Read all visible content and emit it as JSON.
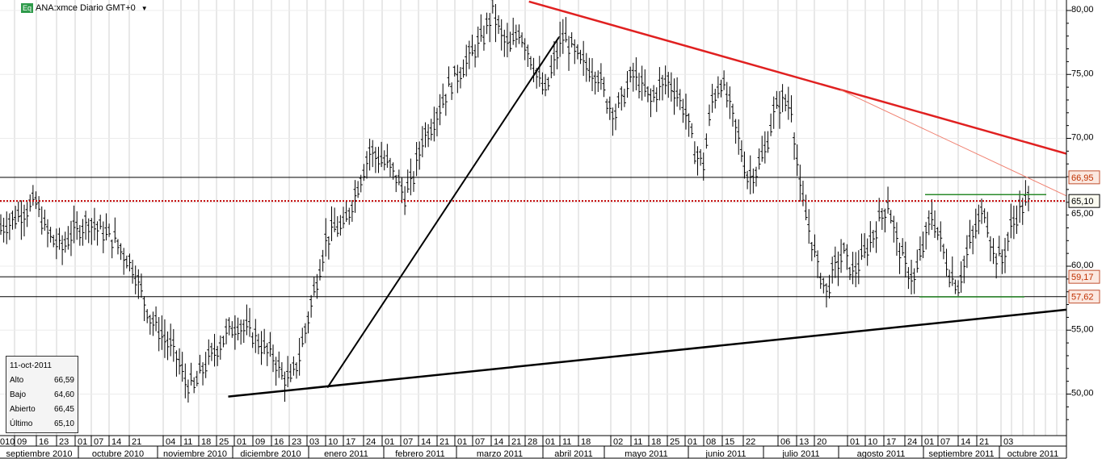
{
  "header": {
    "badge": "Eq",
    "title": "ANA:xmce Diario GMT+0"
  },
  "info": {
    "date": "11-oct-2011",
    "rows": [
      {
        "label": "Alto",
        "value": "66,59"
      },
      {
        "label": "Bajo",
        "value": "64,60"
      },
      {
        "label": "Abierto",
        "value": "66,45"
      },
      {
        "label": "Último",
        "value": "65,10"
      }
    ]
  },
  "chart_data": {
    "type": "ohlc",
    "title": "ANA:xmce Diario GMT+0",
    "ylim": [
      47,
      81
    ],
    "y_ticks": [
      "80,00",
      "75,00",
      "70,00",
      "65,00",
      "60,00",
      "55,00",
      "50,00"
    ],
    "y_tick_values": [
      80,
      75,
      70,
      65,
      60,
      55,
      50
    ],
    "price_path": [
      63,
      63.5,
      64,
      64.5,
      65,
      63,
      62,
      61.5,
      62.5,
      63,
      63.5,
      63,
      62.5,
      62,
      61,
      60,
      58,
      56,
      55,
      54,
      53,
      51,
      50.5,
      52,
      53,
      54,
      55,
      55.5,
      55,
      54.5,
      53.5,
      53,
      51.5,
      51,
      53,
      56,
      59,
      62,
      63,
      63,
      65,
      67,
      69,
      68.5,
      68,
      67,
      65.5,
      67,
      70,
      71,
      72.5,
      74,
      75,
      76,
      77,
      78,
      80,
      78,
      77,
      78.5,
      77,
      75,
      73.5,
      76,
      78,
      77,
      76,
      75.5,
      75,
      73,
      72,
      73.5,
      75,
      74,
      73,
      74,
      74.5,
      73.5,
      72,
      69,
      68,
      73,
      74.5,
      72.5,
      70,
      67,
      67.5,
      69,
      72,
      73,
      72.5,
      66,
      63,
      60,
      58,
      60,
      61,
      59.5,
      60.5,
      62,
      63.5,
      65,
      62,
      60,
      59,
      61.5,
      64,
      62,
      59.5,
      58.5,
      61,
      63,
      64.5,
      61,
      60.5,
      63,
      64.5,
      65.1
    ],
    "lines": [
      {
        "name": "resistance",
        "color": "#e02020",
        "from": [
          80.7,
          0.496
        ],
        "to": [
          68.8,
          1
        ]
      },
      {
        "name": "resistance-thin",
        "color": "#f08070",
        "from": [
          73.8,
          0.788
        ],
        "to": [
          65.5,
          1
        ]
      },
      {
        "name": "support",
        "color": "#000000",
        "from": [
          49.8,
          0.214
        ],
        "to": [
          56.6,
          1
        ]
      },
      {
        "name": "uptrend",
        "color": "#000000",
        "from": [
          50.5,
          0.307
        ],
        "to": [
          77.9,
          0.524
        ]
      }
    ],
    "levels": [
      {
        "value": 66.95,
        "label": "66,95"
      },
      {
        "value": 65.1,
        "label": "65,10",
        "dotted": true
      },
      {
        "value": 59.17,
        "label": "59,17"
      },
      {
        "value": 57.62,
        "label": "57,62"
      }
    ],
    "channel": [
      {
        "value": 65.6
      },
      {
        "value": 57.6
      }
    ],
    "day_ticks": [
      "010",
      "09",
      "16",
      "23",
      "01",
      "07",
      "14",
      "21",
      "04",
      "11",
      "18",
      "25",
      "01",
      "09",
      "16",
      "23",
      "03",
      "10",
      "17",
      "24",
      "01",
      "07",
      "14",
      "21",
      "01",
      "07",
      "14",
      "21",
      "28",
      "01",
      "11",
      "18",
      "02",
      "11",
      "18",
      "25",
      "01",
      "08",
      "15",
      "22",
      "06",
      "13",
      "20",
      "01",
      "10",
      "17",
      "24",
      "01",
      "07",
      "14",
      "21",
      "03"
    ],
    "months": [
      "septiembre 2010",
      "octubre 2010",
      "noviembre 2010",
      "diciembre 2010",
      "enero 2011",
      "febrero 2011",
      "marzo 2011",
      "abril 2011",
      "mayo 2011",
      "junio 2011",
      "julio 2011",
      "agosto 2011",
      "septiembre 2011",
      "octubre 2011"
    ]
  }
}
